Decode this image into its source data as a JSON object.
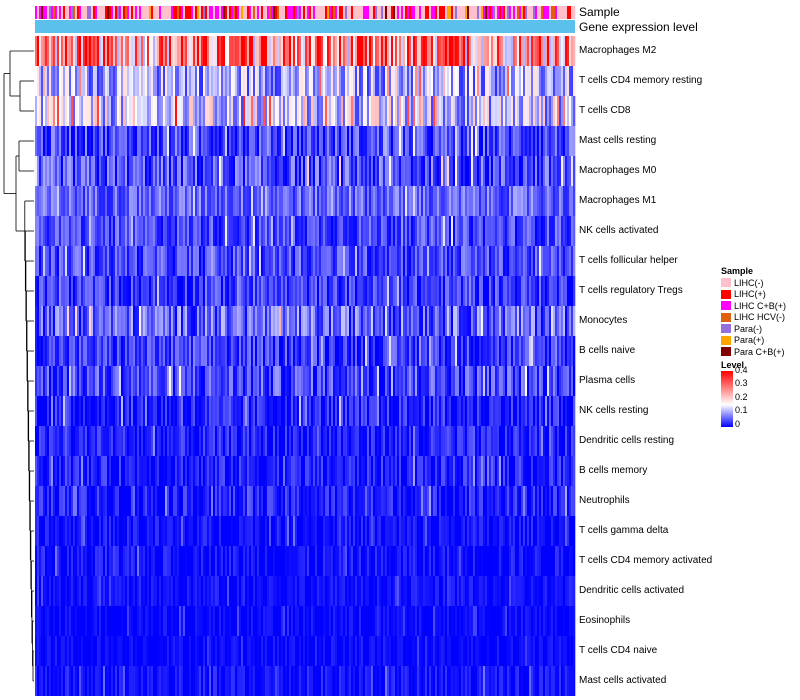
{
  "chart_data": {
    "type": "heatmap",
    "annotation_tracks": [
      "Sample",
      "Gene expression level"
    ],
    "rows": [
      {
        "label": "Macrophages M2",
        "mean": 0.27,
        "spread": 0.15
      },
      {
        "label": "T cells CD4 memory resting",
        "mean": 0.12,
        "spread": 0.09
      },
      {
        "label": "T cells CD8",
        "mean": 0.14,
        "spread": 0.1
      },
      {
        "label": "Mast cells resting",
        "mean": 0.05,
        "spread": 0.06
      },
      {
        "label": "Macrophages M0",
        "mean": 0.05,
        "spread": 0.07
      },
      {
        "label": "Macrophages M1",
        "mean": 0.07,
        "spread": 0.05
      },
      {
        "label": "NK cells activated",
        "mean": 0.05,
        "spread": 0.05
      },
      {
        "label": "T cells follicular helper",
        "mean": 0.05,
        "spread": 0.05
      },
      {
        "label": "T cells regulatory  Tregs",
        "mean": 0.04,
        "spread": 0.05
      },
      {
        "label": "Monocytes",
        "mean": 0.07,
        "spread": 0.07
      },
      {
        "label": "B cells naive",
        "mean": 0.04,
        "spread": 0.05
      },
      {
        "label": "Plasma cells",
        "mean": 0.05,
        "spread": 0.06
      },
      {
        "label": "NK cells resting",
        "mean": 0.02,
        "spread": 0.05
      },
      {
        "label": "Dendritic cells resting",
        "mean": 0.02,
        "spread": 0.04
      },
      {
        "label": "B cells memory",
        "mean": 0.02,
        "spread": 0.04
      },
      {
        "label": "Neutrophils",
        "mean": 0.02,
        "spread": 0.04
      },
      {
        "label": "T cells gamma delta",
        "mean": 0.01,
        "spread": 0.03
      },
      {
        "label": "T cells CD4 memory activated",
        "mean": 0.01,
        "spread": 0.03
      },
      {
        "label": "Dendritic cells activated",
        "mean": 0.01,
        "spread": 0.02
      },
      {
        "label": "Eosinophils",
        "mean": 0.005,
        "spread": 0.02
      },
      {
        "label": "T cells CD4 naive",
        "mean": 0.005,
        "spread": 0.02
      },
      {
        "label": "Mast cells activated",
        "mean": 0.01,
        "spread": 0.03
      }
    ],
    "legend": {
      "sample_title": "Sample",
      "samples": [
        {
          "label": "LIHC(-)",
          "color": "#ffc0cb"
        },
        {
          "label": "LIHC(+)",
          "color": "#ff0000"
        },
        {
          "label": "LIHC C+B(+)",
          "color": "#ff00ff"
        },
        {
          "label": "LIHC HCV(-)",
          "color": "#e06010"
        },
        {
          "label": "Para(-)",
          "color": "#9370db"
        },
        {
          "label": "Para(+)",
          "color": "#ffa500"
        },
        {
          "label": "Para C+B(+)",
          "color": "#800000"
        }
      ],
      "level_title": "Level",
      "level_ticks": [
        "0.4",
        "0.3",
        "0.2",
        "0.1",
        "0"
      ],
      "level_range": [
        0,
        0.4
      ],
      "level_colors": {
        "low": "#0000ff",
        "mid": "#ffffff",
        "high": "#ff0000"
      },
      "expression_track_color": "#5bc0eb"
    }
  }
}
